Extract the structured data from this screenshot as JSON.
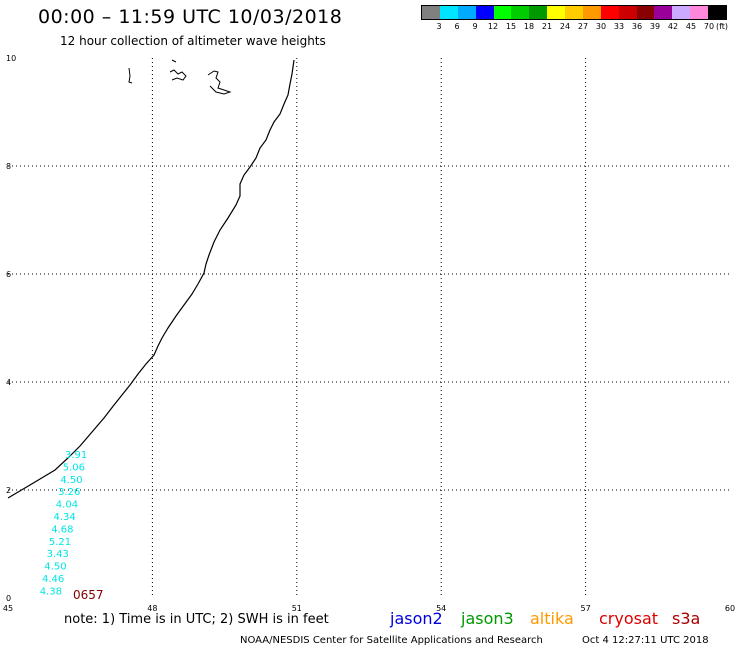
{
  "header": {
    "title": "00:00 – 11:59 UTC 10/03/2018",
    "subtitle": "12 hour collection of altimeter wave heights"
  },
  "color_scale": {
    "labels": [
      "3",
      "6",
      "9",
      "12",
      "15",
      "18",
      "21",
      "24",
      "27",
      "30",
      "33",
      "36",
      "39",
      "42",
      "45",
      "70"
    ],
    "unit": "(ft)",
    "colors": [
      "#808080",
      "#00e5ff",
      "#00aaff",
      "#0000ff",
      "#00ff00",
      "#00cc00",
      "#009900",
      "#ffff00",
      "#ffcc00",
      "#ff9900",
      "#ff0000",
      "#cc0000",
      "#880000",
      "#990099",
      "#ccaaff",
      "#ff88dd",
      "#000000"
    ]
  },
  "axes": {
    "x_ticks": [
      "45",
      "48",
      "51",
      "54",
      "57",
      "60"
    ],
    "y_ticks": [
      "0",
      "2",
      "4",
      "6",
      "8",
      "10"
    ]
  },
  "measurements": {
    "values": [
      "3.91",
      "5.06",
      "4.50",
      "3.26",
      "4.04",
      "4.34",
      "4.68",
      "5.21",
      "3.43",
      "4.50",
      "4.46",
      "4.38"
    ],
    "color": "#00e5e5",
    "time_label": "0657",
    "time_color": "#800000"
  },
  "footer": {
    "note": "note:  1) Time is in UTC;  2) SWH is in feet",
    "credit": "NOAA/NESDIS Center for Satellite Applications and Research",
    "timestamp": "Oct  4 12:27:11 UTC 2018"
  },
  "legend": [
    {
      "name": "jason2",
      "color": "#0000dd"
    },
    {
      "name": "jason3",
      "color": "#009900"
    },
    {
      "name": "altika",
      "color": "#ff9900"
    },
    {
      "name": "cryosat",
      "color": "#dd0000"
    },
    {
      "name": "s3a",
      "color": "#aa0000"
    }
  ]
}
